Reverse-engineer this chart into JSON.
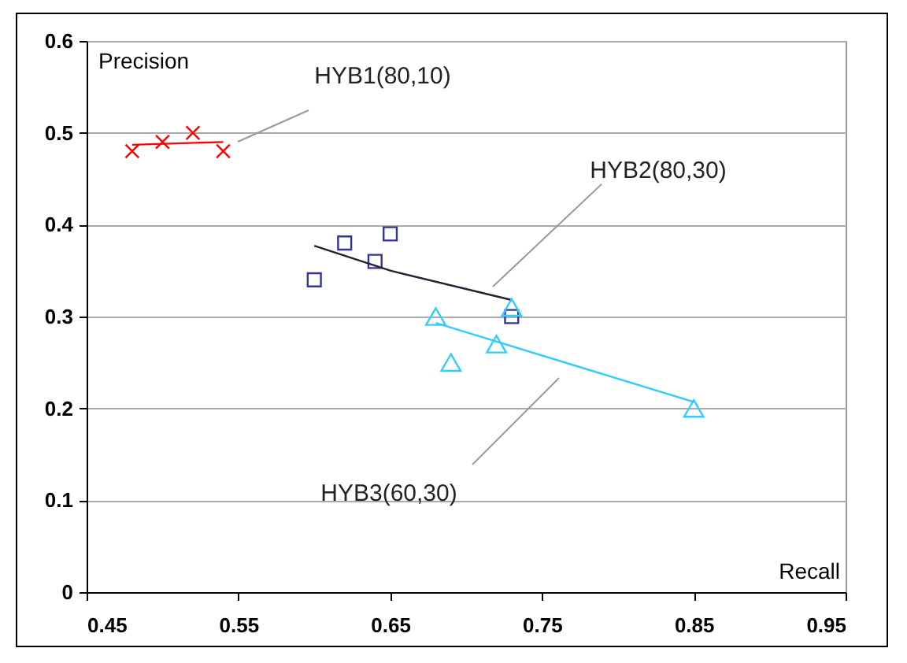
{
  "chart_data": {
    "type": "scatter",
    "xlabel": "Recall",
    "ylabel": "Precision",
    "xlim": [
      0.45,
      0.95
    ],
    "xticks": [
      0.45,
      0.55,
      0.65,
      0.75,
      0.85,
      0.95
    ],
    "ylim": [
      0,
      0.6
    ],
    "yticks": [
      0,
      0.1,
      0.2,
      0.3,
      0.4,
      0.5,
      0.6
    ],
    "grid": "y",
    "series": [
      {
        "type": "scatter",
        "marker": "cross",
        "color": "#ff0000",
        "x": [
          0.48,
          0.5,
          0.52,
          0.54
        ],
        "values": [
          0.48,
          0.49,
          0.5,
          0.48
        ]
      },
      {
        "type": "line",
        "marker": "none",
        "color": "#ff0000",
        "x": [
          0.48,
          0.54
        ],
        "values": [
          0.487,
          0.49
        ]
      },
      {
        "type": "scatter",
        "marker": "square",
        "color": "#333399",
        "x": [
          0.6,
          0.62,
          0.64,
          0.65,
          0.73
        ],
        "values": [
          0.34,
          0.38,
          0.36,
          0.39,
          0.3
        ]
      },
      {
        "type": "line",
        "marker": "none",
        "color": "#222233",
        "x": [
          0.6,
          0.65,
          0.73
        ],
        "values": [
          0.377,
          0.35,
          0.318
        ]
      },
      {
        "type": "scatter",
        "marker": "triangle",
        "color": "#33ccff",
        "x": [
          0.68,
          0.69,
          0.72,
          0.73,
          0.85
        ],
        "values": [
          0.3,
          0.25,
          0.27,
          0.31,
          0.2
        ]
      },
      {
        "type": "line",
        "marker": "none",
        "color": "#33ccff",
        "x": [
          0.68,
          0.85
        ],
        "values": [
          0.293,
          0.207
        ]
      }
    ],
    "annotations": [
      "HYB1(80,10)",
      "HYB2(80,30)",
      "HYB3(60,30)"
    ]
  }
}
